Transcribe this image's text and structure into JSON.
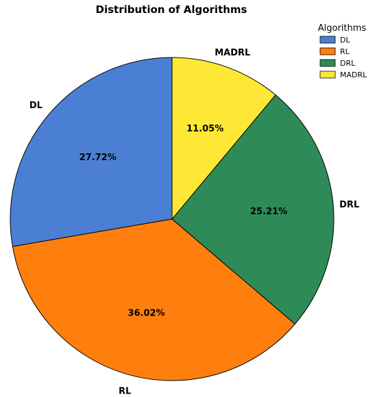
{
  "chart_data": {
    "type": "pie",
    "title": "Distribution of Algorithms",
    "categories": [
      "DL",
      "RL",
      "DRL",
      "MADRL"
    ],
    "values": [
      27.72,
      36.02,
      25.21,
      11.05
    ],
    "value_labels": [
      "27.72%",
      "36.02%",
      "25.21%",
      "11.05%"
    ],
    "colors": [
      "#4a7fd4",
      "#ff7f0e",
      "#2e8b57",
      "#ffe835"
    ],
    "start_angle_deg": 90,
    "direction": "counterclockwise",
    "legend": {
      "title": "Algorithms",
      "placement": "top-right",
      "entries": [
        "DL",
        "RL",
        "DRL",
        "MADRL"
      ]
    }
  }
}
